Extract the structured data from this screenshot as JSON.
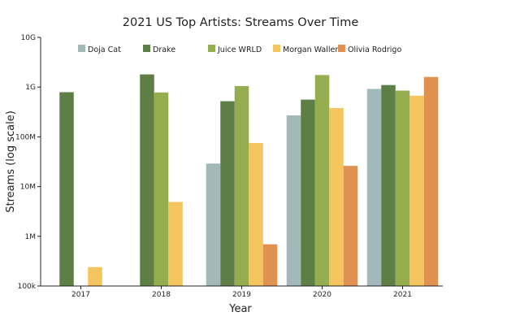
{
  "chart_data": {
    "type": "bar",
    "title": "2021 US Top Artists: Streams Over Time",
    "xlabel": "Year",
    "ylabel": "Streams (log scale)",
    "yscale": "log",
    "ylim": [
      100000,
      10000000000
    ],
    "yticks": [
      {
        "value": 100000,
        "label": "100k"
      },
      {
        "value": 1000000,
        "label": "1M"
      },
      {
        "value": 10000000,
        "label": "10M"
      },
      {
        "value": 100000000,
        "label": "100M"
      },
      {
        "value": 1000000000,
        "label": "1G"
      },
      {
        "value": 10000000000,
        "label": "10G"
      }
    ],
    "categories": [
      "2017",
      "2018",
      "2019",
      "2020",
      "2021"
    ],
    "grid": false,
    "legend_position": "top",
    "series": [
      {
        "name": "Doja Cat",
        "color": "#a3b9b9",
        "values": [
          null,
          null,
          29000000,
          270000000,
          920000000
        ]
      },
      {
        "name": "Drake",
        "color": "#5d7e45",
        "values": [
          790000000,
          1800000000,
          520000000,
          560000000,
          1100000000
        ]
      },
      {
        "name": "Juice WRLD",
        "color": "#94ad4f",
        "values": [
          null,
          780000000,
          1050000000,
          1750000000,
          850000000
        ]
      },
      {
        "name": "Morgan Wallen",
        "color": "#f4c45e",
        "values": [
          240000,
          4900000,
          75000000,
          380000000,
          670000000
        ]
      },
      {
        "name": "Olivia Rodrigo",
        "color": "#e0904f",
        "values": [
          null,
          null,
          690000,
          26000000,
          1600000000
        ]
      }
    ]
  }
}
